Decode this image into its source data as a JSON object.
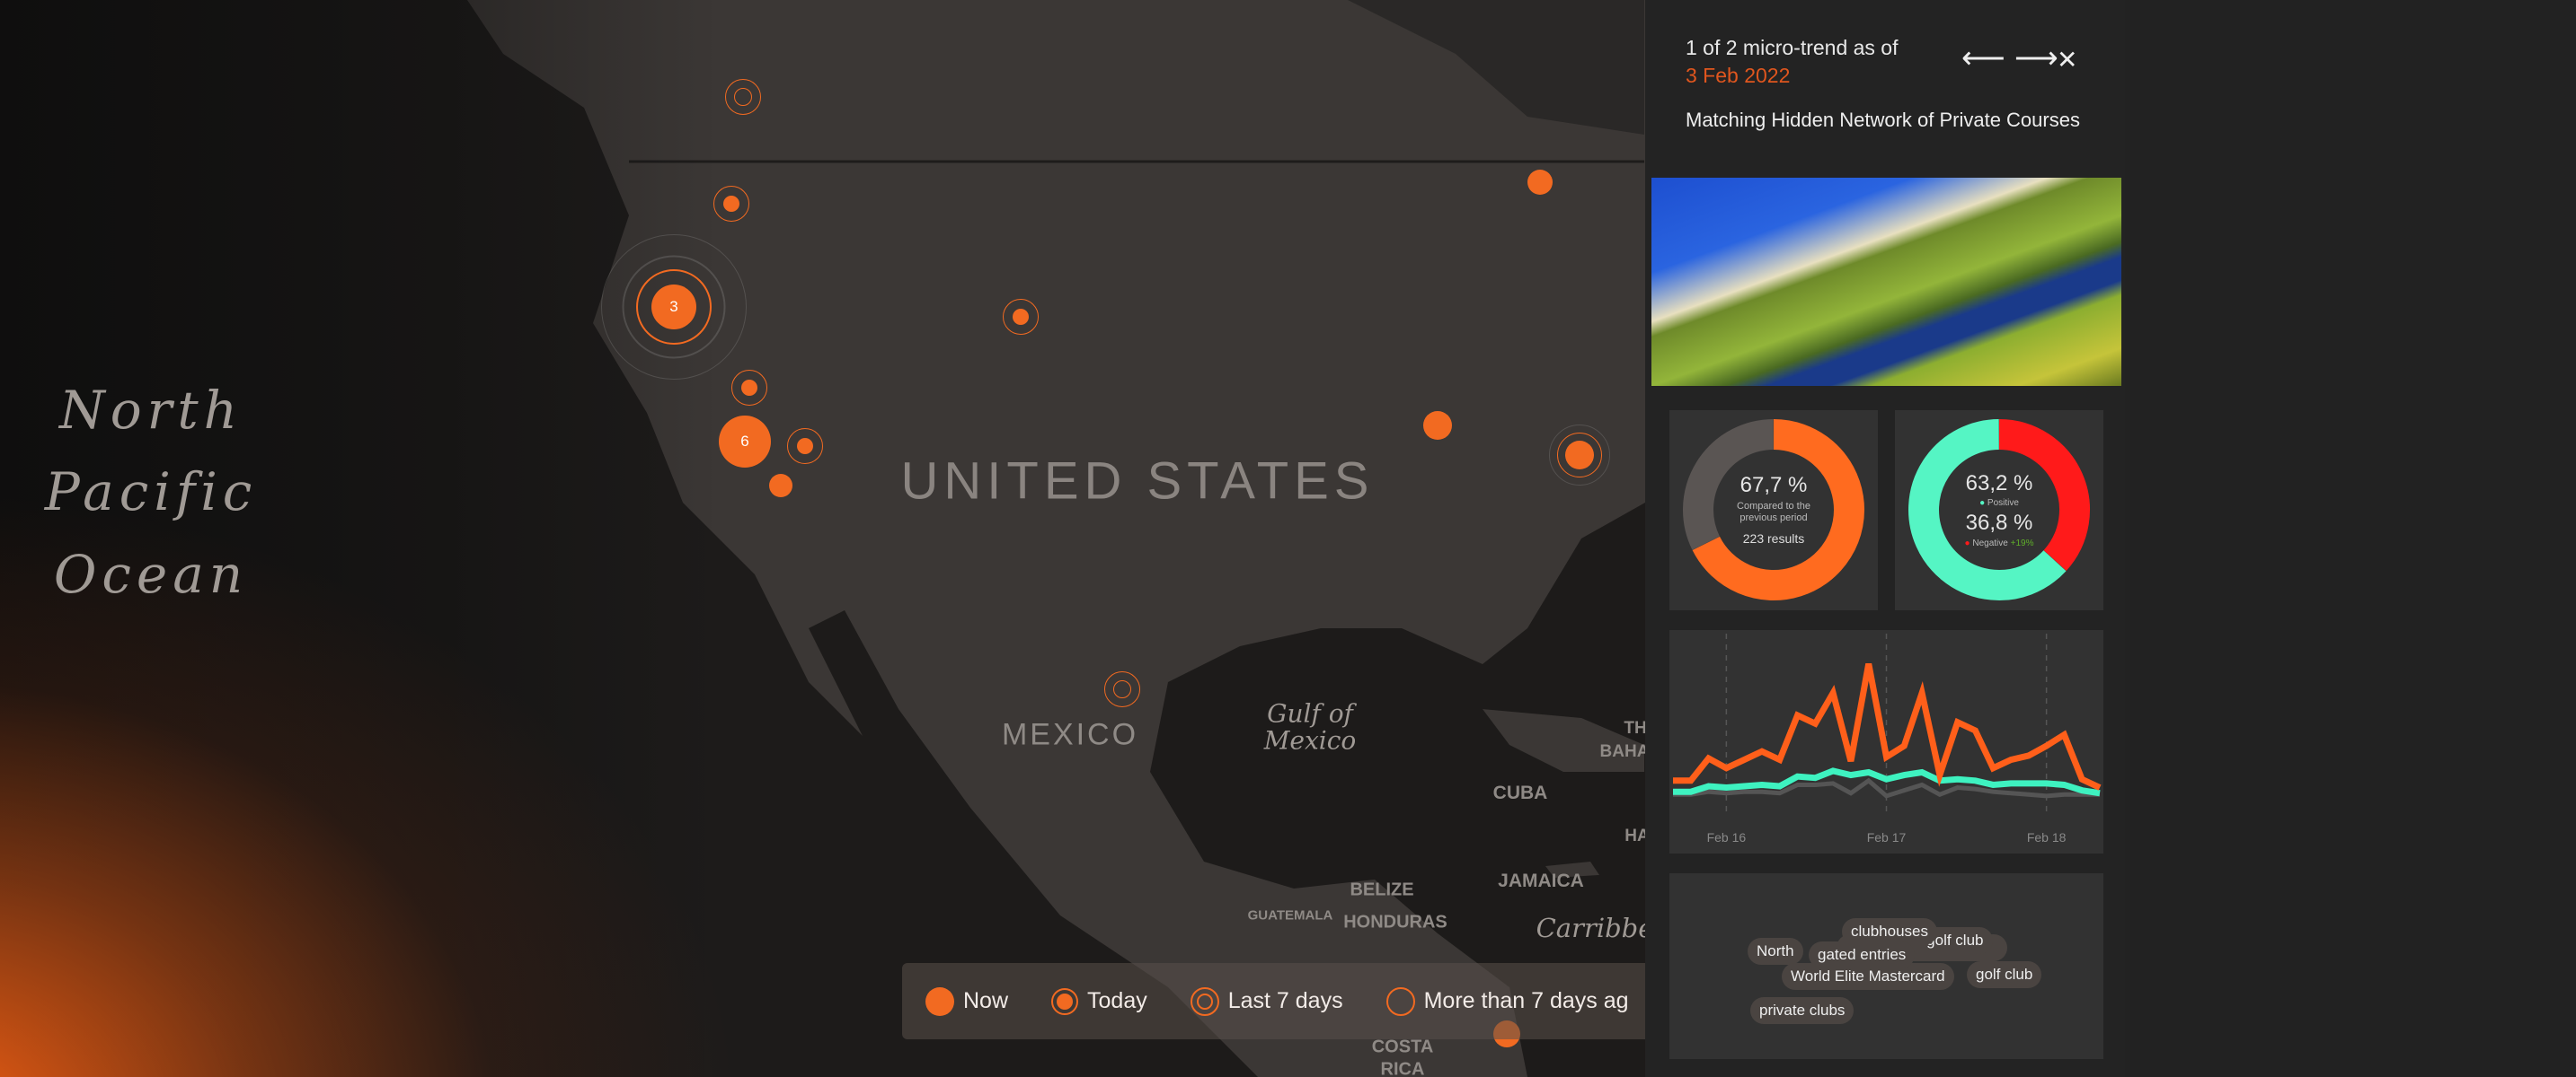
{
  "map": {
    "labels": {
      "ocean_1": "North",
      "ocean_2": "Pacific",
      "ocean_3": "Ocean",
      "usa": "UNITED STATES",
      "mexico": "MEXICO",
      "gulf_1": "Gulf of",
      "gulf_2": "Mexico",
      "cuba": "CUBA",
      "jamaica": "JAMAICA",
      "belize": "BELIZE",
      "honduras": "HONDURAS",
      "guatemala": "GUATEMALA",
      "caribbean": "Carribbe",
      "costa_1": "COSTA",
      "costa_2": "RICA",
      "bahamas_1": "TH",
      "bahamas_2": "BAHA",
      "haiti": "HA"
    },
    "clusters": [
      {
        "count": "3"
      },
      {
        "count": "6"
      }
    ],
    "accent": "#f26a21"
  },
  "legend": {
    "items": [
      {
        "label": "Now",
        "type": "now"
      },
      {
        "label": "Today",
        "type": "today"
      },
      {
        "label": "Last 7 days",
        "type": "last7"
      },
      {
        "label": "More than 7 days ag",
        "type": "older"
      }
    ]
  },
  "panel": {
    "counter": "1 of 2 micro-trend as of",
    "date": "3 Feb 2022",
    "prev_icon": "arrow-left-icon",
    "next_icon": "arrow-right-icon",
    "close_icon": "close-icon",
    "prev": "⟵",
    "next": "⟶",
    "close": "✕",
    "title": "Matching Hidden Network of Private Courses",
    "donut_volume": {
      "value": 67.7,
      "value_label": "67,7 %",
      "caption_1": "Compared to the",
      "caption_2": "previous period",
      "results": "223 results",
      "colors": {
        "value": "#ff6b1f",
        "rest": "#5a5553"
      }
    },
    "donut_sentiment": {
      "positive": 63.2,
      "negative": 36.8,
      "positive_label": "63,2 %",
      "positive_name": "Positive",
      "negative_label": "36,8 %",
      "negative_name": "Negative",
      "change": "+19%",
      "colors": {
        "positive": "#55f5c4",
        "negative": "#ff1a1a",
        "change": "#5fae2a"
      }
    },
    "tags": [
      "clubhouses",
      "e golf club",
      "North",
      "gated entries",
      "World Elite Mastercard",
      "golf club",
      "private clubs"
    ]
  },
  "chart_data": {
    "type": "line",
    "x_ticks": [
      {
        "label": "Feb 16",
        "index": 3
      },
      {
        "label": "Feb 17",
        "index": 12
      },
      {
        "label": "Feb 18",
        "index": 21
      }
    ],
    "series": [
      {
        "color": "#ff5f1a",
        "values": [
          24,
          24,
          40,
          33,
          39,
          45,
          39,
          71,
          65,
          87,
          38,
          108,
          41,
          49,
          87,
          28,
          66,
          60,
          33,
          39,
          42,
          49,
          57,
          25,
          19
        ]
      },
      {
        "color": "#3ef2c0",
        "values": [
          16,
          16,
          20,
          19,
          20,
          21,
          20,
          27,
          26,
          31,
          28,
          30,
          25,
          28,
          30,
          24,
          25,
          24,
          21,
          22,
          22,
          22,
          21,
          17,
          15
        ]
      },
      {
        "color": "#555555",
        "values": [
          14,
          14,
          16,
          15,
          16,
          16,
          15,
          21,
          21,
          22,
          15,
          24,
          13,
          17,
          21,
          14,
          19,
          18,
          16,
          15,
          14,
          13,
          14,
          14,
          14
        ]
      }
    ],
    "grid": "dashed vertical at ticks"
  }
}
